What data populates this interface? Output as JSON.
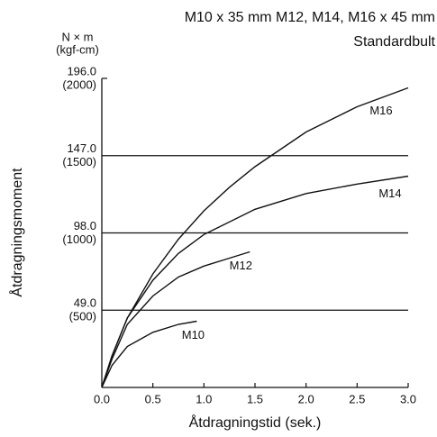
{
  "chart_data": {
    "type": "line",
    "title": "M10 x 35 mm M12, M14, M16 x 45 mm",
    "subtitle": "Standardbult",
    "x_label": "Åtdragningstid (sek.)",
    "y_label": "Åtdragningsmoment",
    "y_unit": [
      "N × m",
      "(kgf-cm)"
    ],
    "xlim": [
      0,
      3
    ],
    "ylim": [
      0,
      196
    ],
    "xticks": [
      {
        "value": 0,
        "label": "0.0"
      },
      {
        "value": 0.5,
        "label": "0.5"
      },
      {
        "value": 1,
        "label": "1.0"
      },
      {
        "value": 1.5,
        "label": "1.5"
      },
      {
        "value": 2,
        "label": "2.0"
      },
      {
        "value": 2.5,
        "label": "2.5"
      },
      {
        "value": 3,
        "label": "3.0"
      }
    ],
    "yticks": [
      {
        "value": 49,
        "label": "49.0"
      },
      {
        "value": 98,
        "label": "98.0"
      },
      {
        "value": 147,
        "label": "147.0"
      },
      {
        "value": 196,
        "label": "196.0"
      }
    ],
    "ytick_sub_labels": [
      "(500)",
      "(1000)",
      "(1500)",
      "(2000)"
    ],
    "grid": true,
    "color": "#111111",
    "series": [
      {
        "name": "M16",
        "x": [
          0,
          0.1,
          0.25,
          0.5,
          0.75,
          1,
          1.25,
          1.5,
          2,
          2.5,
          3
        ],
        "values": [
          0,
          20,
          44,
          72,
          94,
          112,
          127,
          140,
          162,
          178,
          190
        ]
      },
      {
        "name": "M14",
        "x": [
          0,
          0.1,
          0.25,
          0.5,
          0.75,
          1,
          1.5,
          2,
          2.5,
          3
        ],
        "values": [
          0,
          20,
          44,
          68,
          85,
          97,
          113,
          123,
          129,
          134
        ]
      },
      {
        "name": "M12",
        "x": [
          0,
          0.1,
          0.25,
          0.5,
          0.75,
          1,
          1.25,
          1.45
        ],
        "values": [
          0,
          18,
          40,
          58,
          70,
          77,
          82,
          86
        ]
      },
      {
        "name": "M10",
        "x": [
          0,
          0.1,
          0.25,
          0.5,
          0.75,
          0.93
        ],
        "values": [
          0,
          14,
          26,
          35,
          40,
          42
        ]
      }
    ]
  }
}
